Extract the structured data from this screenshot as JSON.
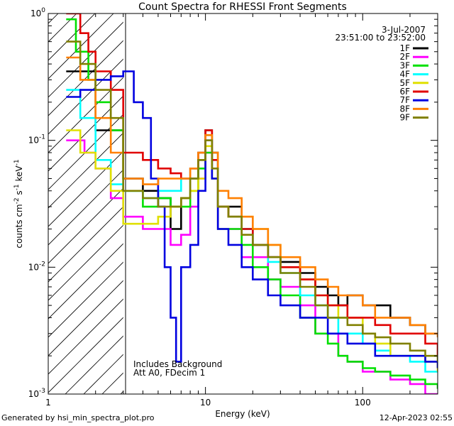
{
  "chart_data": {
    "type": "line",
    "style": "histogram-step",
    "title": "Count Spectra for RHESSI Front Segments",
    "xlabel": "Energy (keV)",
    "ylabel_parts": {
      "base": "counts cm",
      "exp1": "-2",
      "mid1": " s",
      "exp2": "-1",
      "mid2": " keV",
      "exp3": "-1"
    },
    "x_scale": "log",
    "y_scale": "log",
    "xlim": [
      1,
      300
    ],
    "ylim": [
      0.001,
      1
    ],
    "x_ticks": [
      {
        "value": 1,
        "label": "1"
      },
      {
        "value": 10,
        "label": "10"
      },
      {
        "value": 100,
        "label": "100"
      }
    ],
    "y_ticks": [
      {
        "value": 1,
        "base": "10",
        "exp": "0"
      },
      {
        "value": 0.1,
        "base": "10",
        "exp": "-1"
      },
      {
        "value": 0.01,
        "base": "10",
        "exp": "-2"
      },
      {
        "value": 0.001,
        "base": "10",
        "exp": "-3"
      }
    ],
    "excluded_region": {
      "x_range": [
        1,
        3
      ],
      "style": "hatched"
    },
    "date": "3-Jul-2007",
    "time_range": "23:51:00 to 23:52:00",
    "annotations": [
      "Includes Background",
      "Att A0, FDecim 1"
    ],
    "series": [
      {
        "name": "1F",
        "color": "#000000",
        "points": [
          [
            1.3,
            0.35
          ],
          [
            2,
            0.12
          ],
          [
            3,
            0.05
          ],
          [
            4,
            0.04
          ],
          [
            5,
            0.035
          ],
          [
            6,
            0.02
          ],
          [
            7,
            0.035
          ],
          [
            8,
            0.05
          ],
          [
            9,
            0.07
          ],
          [
            10,
            0.12
          ],
          [
            11,
            0.08
          ],
          [
            12,
            0.03
          ],
          [
            14,
            0.03
          ],
          [
            17,
            0.02
          ],
          [
            20,
            0.015
          ],
          [
            25,
            0.012
          ],
          [
            30,
            0.011
          ],
          [
            40,
            0.009
          ],
          [
            50,
            0.007
          ],
          [
            60,
            0.006
          ],
          [
            70,
            0.005
          ],
          [
            80,
            0.006
          ],
          [
            100,
            0.005
          ],
          [
            120,
            0.005
          ],
          [
            150,
            0.004
          ],
          [
            200,
            0.0035
          ],
          [
            250,
            0.003
          ],
          [
            300,
            0.003
          ]
        ]
      },
      {
        "name": "2F",
        "color": "#ff00ff",
        "points": [
          [
            1.3,
            0.1
          ],
          [
            1.7,
            0.08
          ],
          [
            2,
            0.06
          ],
          [
            2.5,
            0.035
          ],
          [
            3,
            0.025
          ],
          [
            4,
            0.02
          ],
          [
            5,
            0.02
          ],
          [
            6,
            0.015
          ],
          [
            7,
            0.018
          ],
          [
            8,
            0.03
          ],
          [
            9,
            0.05
          ],
          [
            10,
            0.08
          ],
          [
            11,
            0.05
          ],
          [
            12,
            0.02
          ],
          [
            14,
            0.02
          ],
          [
            17,
            0.012
          ],
          [
            20,
            0.012
          ],
          [
            25,
            0.008
          ],
          [
            30,
            0.007
          ],
          [
            40,
            0.005
          ],
          [
            50,
            0.003
          ],
          [
            60,
            0.003
          ],
          [
            70,
            0.002
          ],
          [
            80,
            0.0018
          ],
          [
            100,
            0.0015
          ],
          [
            120,
            0.0015
          ],
          [
            150,
            0.0013
          ],
          [
            200,
            0.0012
          ],
          [
            250,
            0.001
          ],
          [
            300,
            0.001
          ]
        ]
      },
      {
        "name": "3F",
        "color": "#00e000",
        "points": [
          [
            1.3,
            0.9
          ],
          [
            1.5,
            0.5
          ],
          [
            1.8,
            0.3
          ],
          [
            2,
            0.2
          ],
          [
            2.5,
            0.12
          ],
          [
            3,
            0.04
          ],
          [
            4,
            0.03
          ],
          [
            5,
            0.035
          ],
          [
            6,
            0.03
          ],
          [
            7,
            0.03
          ],
          [
            8,
            0.04
          ],
          [
            9,
            0.06
          ],
          [
            10,
            0.08
          ],
          [
            11,
            0.05
          ],
          [
            12,
            0.02
          ],
          [
            14,
            0.02
          ],
          [
            17,
            0.015
          ],
          [
            20,
            0.01
          ],
          [
            25,
            0.008
          ],
          [
            30,
            0.006
          ],
          [
            40,
            0.004
          ],
          [
            50,
            0.003
          ],
          [
            60,
            0.0025
          ],
          [
            70,
            0.002
          ],
          [
            80,
            0.0018
          ],
          [
            100,
            0.0016
          ],
          [
            120,
            0.0015
          ],
          [
            150,
            0.0014
          ],
          [
            200,
            0.0013
          ],
          [
            250,
            0.0012
          ],
          [
            300,
            0.0011
          ]
        ]
      },
      {
        "name": "4F",
        "color": "#00ffff",
        "points": [
          [
            1.3,
            0.25
          ],
          [
            1.6,
            0.15
          ],
          [
            2,
            0.07
          ],
          [
            2.5,
            0.045
          ],
          [
            3,
            0.04
          ],
          [
            4,
            0.035
          ],
          [
            5,
            0.04
          ],
          [
            6,
            0.04
          ],
          [
            7,
            0.05
          ],
          [
            8,
            0.06
          ],
          [
            9,
            0.08
          ],
          [
            10,
            0.11
          ],
          [
            11,
            0.07
          ],
          [
            12,
            0.03
          ],
          [
            14,
            0.025
          ],
          [
            17,
            0.02
          ],
          [
            20,
            0.015
          ],
          [
            25,
            0.011
          ],
          [
            30,
            0.009
          ],
          [
            40,
            0.006
          ],
          [
            50,
            0.005
          ],
          [
            60,
            0.004
          ],
          [
            70,
            0.003
          ],
          [
            80,
            0.003
          ],
          [
            100,
            0.0025
          ],
          [
            120,
            0.0022
          ],
          [
            150,
            0.002
          ],
          [
            200,
            0.0018
          ],
          [
            250,
            0.0015
          ],
          [
            300,
            0.0015
          ]
        ]
      },
      {
        "name": "5F",
        "color": "#e0e000",
        "points": [
          [
            1.3,
            0.12
          ],
          [
            1.6,
            0.08
          ],
          [
            2,
            0.06
          ],
          [
            2.5,
            0.04
          ],
          [
            3,
            0.022
          ],
          [
            4,
            0.022
          ],
          [
            5,
            0.025
          ],
          [
            6,
            0.03
          ],
          [
            7,
            0.035
          ],
          [
            8,
            0.04
          ],
          [
            9,
            0.05
          ],
          [
            10,
            0.09
          ],
          [
            11,
            0.05
          ],
          [
            12,
            0.03
          ],
          [
            14,
            0.025
          ],
          [
            17,
            0.025
          ],
          [
            20,
            0.02
          ],
          [
            25,
            0.015
          ],
          [
            30,
            0.01
          ],
          [
            40,
            0.008
          ],
          [
            50,
            0.006
          ],
          [
            60,
            0.005
          ],
          [
            70,
            0.004
          ],
          [
            80,
            0.004
          ],
          [
            100,
            0.003
          ],
          [
            120,
            0.0025
          ],
          [
            150,
            0.002
          ],
          [
            200,
            0.002
          ],
          [
            250,
            0.0018
          ],
          [
            300,
            0.0015
          ]
        ]
      },
      {
        "name": "6F",
        "color": "#e00000",
        "points": [
          [
            1.3,
            1
          ],
          [
            1.6,
            0.7
          ],
          [
            1.8,
            0.5
          ],
          [
            2,
            0.35
          ],
          [
            2.5,
            0.25
          ],
          [
            3,
            0.08
          ],
          [
            4,
            0.07
          ],
          [
            5,
            0.06
          ],
          [
            6,
            0.055
          ],
          [
            7,
            0.05
          ],
          [
            8,
            0.06
          ],
          [
            9,
            0.08
          ],
          [
            10,
            0.12
          ],
          [
            11,
            0.07
          ],
          [
            12,
            0.03
          ],
          [
            14,
            0.025
          ],
          [
            17,
            0.02
          ],
          [
            20,
            0.015
          ],
          [
            25,
            0.012
          ],
          [
            30,
            0.01
          ],
          [
            40,
            0.008
          ],
          [
            50,
            0.006
          ],
          [
            60,
            0.005
          ],
          [
            70,
            0.005
          ],
          [
            80,
            0.004
          ],
          [
            100,
            0.004
          ],
          [
            120,
            0.0035
          ],
          [
            150,
            0.003
          ],
          [
            200,
            0.003
          ],
          [
            250,
            0.0025
          ],
          [
            300,
            0.002
          ]
        ]
      },
      {
        "name": "7F",
        "color": "#0000e0",
        "points": [
          [
            1.3,
            0.22
          ],
          [
            1.6,
            0.25
          ],
          [
            2,
            0.3
          ],
          [
            2.5,
            0.32
          ],
          [
            3,
            0.35
          ],
          [
            3.5,
            0.2
          ],
          [
            4,
            0.15
          ],
          [
            4.5,
            0.05
          ],
          [
            5,
            0.03
          ],
          [
            5.5,
            0.01
          ],
          [
            6,
            0.004
          ],
          [
            6.5,
            0.0018
          ],
          [
            7,
            0.01
          ],
          [
            8,
            0.015
          ],
          [
            9,
            0.04
          ],
          [
            10,
            0.1
          ],
          [
            11,
            0.05
          ],
          [
            12,
            0.02
          ],
          [
            14,
            0.015
          ],
          [
            17,
            0.01
          ],
          [
            20,
            0.008
          ],
          [
            25,
            0.006
          ],
          [
            30,
            0.005
          ],
          [
            40,
            0.004
          ],
          [
            50,
            0.004
          ],
          [
            60,
            0.003
          ],
          [
            70,
            0.003
          ],
          [
            80,
            0.0025
          ],
          [
            100,
            0.0025
          ],
          [
            120,
            0.002
          ],
          [
            150,
            0.002
          ],
          [
            200,
            0.002
          ],
          [
            250,
            0.0018
          ],
          [
            300,
            0.0016
          ]
        ]
      },
      {
        "name": "8F",
        "color": "#ff8000",
        "points": [
          [
            1.3,
            0.45
          ],
          [
            1.6,
            0.3
          ],
          [
            2,
            0.15
          ],
          [
            2.5,
            0.08
          ],
          [
            3,
            0.05
          ],
          [
            4,
            0.045
          ],
          [
            5,
            0.05
          ],
          [
            6,
            0.05
          ],
          [
            7,
            0.05
          ],
          [
            8,
            0.06
          ],
          [
            9,
            0.08
          ],
          [
            10,
            0.11
          ],
          [
            11,
            0.08
          ],
          [
            12,
            0.04
          ],
          [
            14,
            0.035
          ],
          [
            17,
            0.025
          ],
          [
            20,
            0.02
          ],
          [
            25,
            0.015
          ],
          [
            30,
            0.012
          ],
          [
            40,
            0.01
          ],
          [
            50,
            0.008
          ],
          [
            60,
            0.007
          ],
          [
            70,
            0.006
          ],
          [
            80,
            0.006
          ],
          [
            100,
            0.005
          ],
          [
            120,
            0.004
          ],
          [
            150,
            0.004
          ],
          [
            200,
            0.0035
          ],
          [
            250,
            0.003
          ],
          [
            300,
            0.0028
          ]
        ]
      },
      {
        "name": "9F",
        "color": "#808000",
        "points": [
          [
            1.3,
            0.6
          ],
          [
            1.6,
            0.4
          ],
          [
            2,
            0.25
          ],
          [
            2.5,
            0.15
          ],
          [
            3,
            0.04
          ],
          [
            4,
            0.035
          ],
          [
            5,
            0.03
          ],
          [
            6,
            0.03
          ],
          [
            7,
            0.035
          ],
          [
            8,
            0.05
          ],
          [
            9,
            0.07
          ],
          [
            10,
            0.1
          ],
          [
            11,
            0.06
          ],
          [
            12,
            0.03
          ],
          [
            14,
            0.025
          ],
          [
            17,
            0.018
          ],
          [
            20,
            0.015
          ],
          [
            25,
            0.012
          ],
          [
            30,
            0.009
          ],
          [
            40,
            0.007
          ],
          [
            50,
            0.005
          ],
          [
            60,
            0.004
          ],
          [
            70,
            0.004
          ],
          [
            80,
            0.0035
          ],
          [
            100,
            0.003
          ],
          [
            120,
            0.0028
          ],
          [
            150,
            0.0025
          ],
          [
            200,
            0.0022
          ],
          [
            250,
            0.002
          ],
          [
            300,
            0.0018
          ]
        ]
      }
    ]
  },
  "footer": {
    "generated_by": "Generated by hsi_min_spectra_plot.pro",
    "timestamp": "12-Apr-2023 02:55"
  }
}
